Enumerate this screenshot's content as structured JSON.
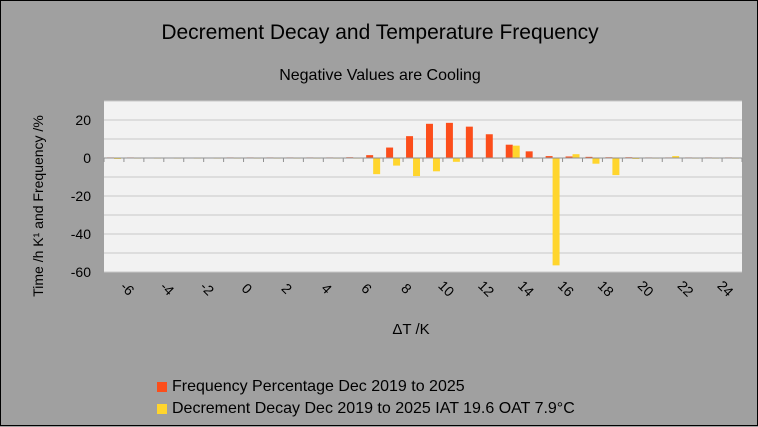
{
  "chart_data": {
    "type": "bar",
    "title": "Decrement Decay and Temperature Frequency",
    "subtitle": "Negative Values are Cooling",
    "xlabel": "ΔT /K",
    "ylabel": "Time /h K¹ and Frequency /%",
    "ylim": [
      -60,
      30
    ],
    "yticks": [
      20,
      0,
      -20,
      -40,
      -60
    ],
    "xlim": [
      -7,
      25
    ],
    "xticks": [
      -6,
      -4,
      -2,
      0,
      2,
      4,
      6,
      8,
      10,
      12,
      14,
      16,
      18,
      20,
      22,
      24
    ],
    "grid": true,
    "legend_position": "bottom-left",
    "x": [
      -6.5,
      -5.5,
      -4.5,
      -3.5,
      -2.5,
      -1.5,
      -0.5,
      0.5,
      1.5,
      2.5,
      3.5,
      4.5,
      5.5,
      6.5,
      7.5,
      8.5,
      9.5,
      10.5,
      11.5,
      12.5,
      13.5,
      14.5,
      15.5,
      16.5,
      17.5,
      18.5,
      19.5,
      20.5,
      21.5,
      22.5,
      23.5,
      24.5
    ],
    "series": [
      {
        "name": "Frequency Percentage Dec 2019 to 2025",
        "color": "#fc4e1b",
        "values": [
          0.3,
          0.3,
          0.2,
          0.2,
          0.2,
          0.2,
          0.3,
          0.3,
          0.3,
          0.3,
          0.3,
          0.3,
          0.4,
          1.5,
          5.5,
          11.5,
          18,
          18.5,
          16.5,
          12.5,
          7,
          3.5,
          1,
          0.8,
          0.6,
          0.4,
          0.4,
          0.3,
          0.3,
          0.3,
          0.3,
          0.3
        ]
      },
      {
        "name": "Decrement Decay Dec 2019 to 2025 IAT 19.6 OAT 7.9°C",
        "color": "#ffd52d",
        "values": [
          -0.5,
          -0.2,
          -0.2,
          -0.2,
          -0.2,
          -0.2,
          -0.2,
          -0.2,
          -0.2,
          -0.2,
          -0.2,
          -0.2,
          -0.2,
          -8.5,
          -4,
          -9.5,
          -7,
          -2,
          0,
          0,
          6.5,
          0,
          -56.5,
          2,
          -3,
          -9,
          -0.5,
          -0.3,
          1,
          -0.3,
          -0.3,
          -0.3
        ]
      }
    ]
  }
}
